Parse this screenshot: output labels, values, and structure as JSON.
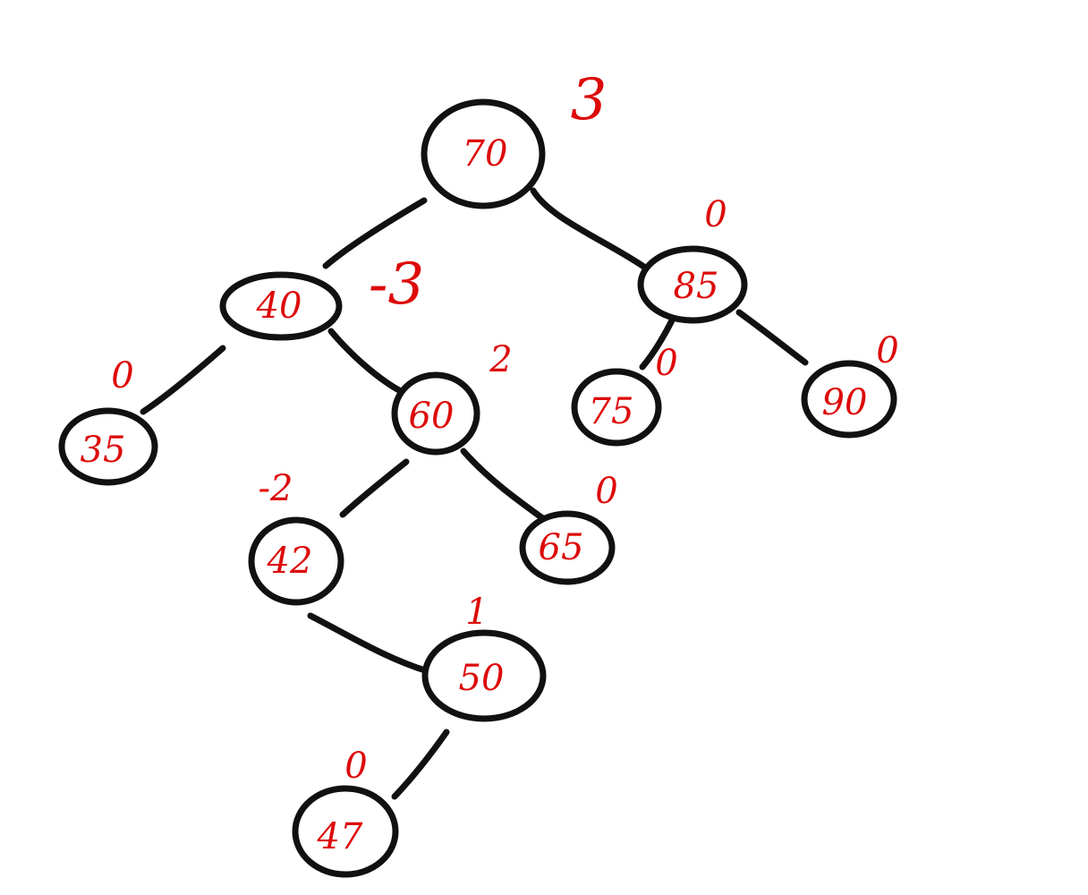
{
  "diagram": {
    "type": "binary-tree",
    "stroke_color": "#111111",
    "label_color": "#dd0a0a",
    "nodes": [
      {
        "id": "n70",
        "value": "70",
        "balance": "3"
      },
      {
        "id": "n40",
        "value": "40",
        "balance": "-3"
      },
      {
        "id": "n85",
        "value": "85",
        "balance": "0"
      },
      {
        "id": "n35",
        "value": "35",
        "balance": "0"
      },
      {
        "id": "n60",
        "value": "60",
        "balance": "2"
      },
      {
        "id": "n75",
        "value": "75",
        "balance": "0"
      },
      {
        "id": "n90",
        "value": "90",
        "balance": "0"
      },
      {
        "id": "n42",
        "value": "42",
        "balance": "-2"
      },
      {
        "id": "n65",
        "value": "65",
        "balance": "0"
      },
      {
        "id": "n50",
        "value": "50",
        "balance": "1"
      },
      {
        "id": "n47",
        "value": "47",
        "balance": "0"
      }
    ],
    "edges": [
      {
        "from": "70",
        "to": "40"
      },
      {
        "from": "70",
        "to": "85"
      },
      {
        "from": "40",
        "to": "35"
      },
      {
        "from": "40",
        "to": "60"
      },
      {
        "from": "85",
        "to": "75"
      },
      {
        "from": "85",
        "to": "90"
      },
      {
        "from": "60",
        "to": "42"
      },
      {
        "from": "60",
        "to": "65"
      },
      {
        "from": "42",
        "to": "50"
      },
      {
        "from": "50",
        "to": "47"
      }
    ]
  }
}
